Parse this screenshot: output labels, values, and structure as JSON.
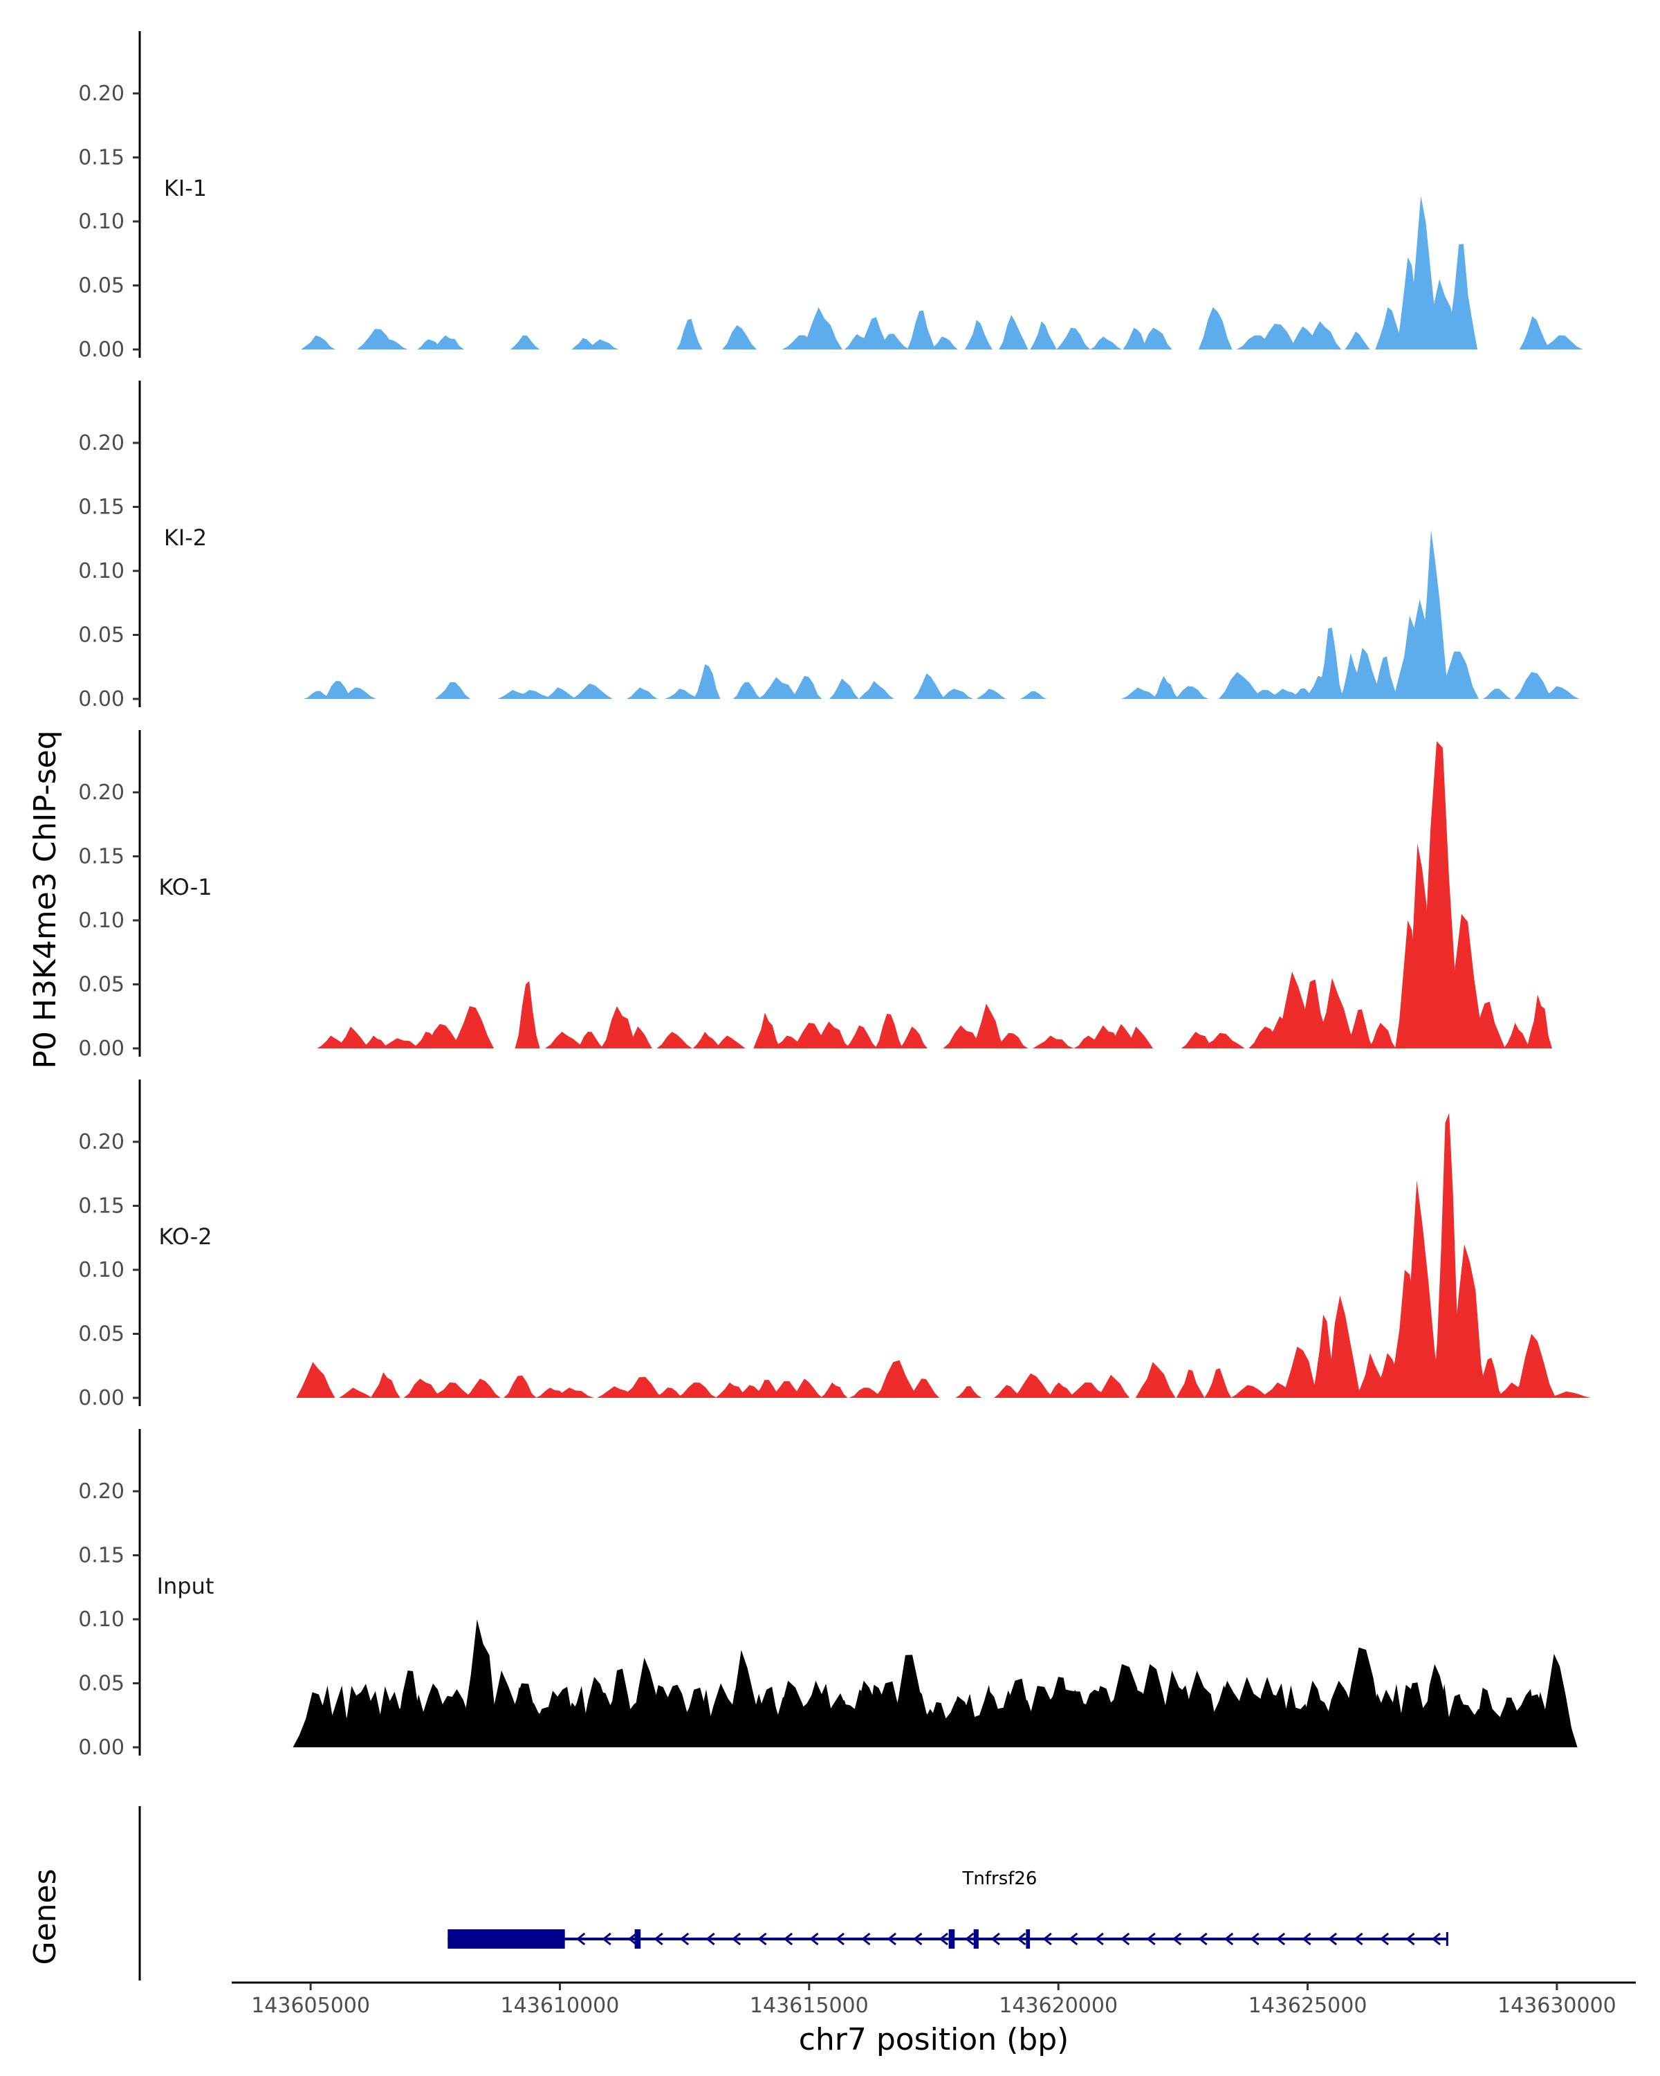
{
  "chart_data": {
    "type": "area",
    "ylabel": "P0 H3K4me3 ChIP-seq",
    "genes_label": "Genes",
    "xlabel": "chr7 position (bp)",
    "xlim": [
      143603500,
      143631500
    ],
    "ylim": [
      0,
      0.25
    ],
    "y_ticks": [
      0.0,
      0.05,
      0.1,
      0.15,
      0.2
    ],
    "y_tick_labels": [
      "0.00",
      "0.05",
      "0.10",
      "0.15",
      "0.20"
    ],
    "x_ticks": [
      143605000,
      143610000,
      143615000,
      143620000,
      143625000,
      143630000
    ],
    "x_tick_labels": [
      "143605000",
      "143610000",
      "143615000",
      "143620000",
      "143625000",
      "143630000"
    ],
    "tracks": [
      {
        "name": "KI-1",
        "color": "#5DADEC",
        "peaks": [
          [
            143605150,
            0.011
          ],
          [
            143606350,
            0.016
          ],
          [
            143606600,
            0.008
          ],
          [
            143607400,
            0.008
          ],
          [
            143607750,
            0.011
          ],
          [
            143609300,
            0.011
          ],
          [
            143610500,
            0.009
          ],
          [
            143610850,
            0.008
          ],
          [
            143612600,
            0.023
          ],
          [
            143613600,
            0.019
          ],
          [
            143614850,
            0.011
          ],
          [
            143615250,
            0.033
          ],
          [
            143616000,
            0.012
          ],
          [
            143616300,
            0.024
          ],
          [
            143616650,
            0.012
          ],
          [
            143617250,
            0.03
          ],
          [
            143617700,
            0.01
          ],
          [
            143618400,
            0.023
          ],
          [
            143619100,
            0.027
          ],
          [
            143619700,
            0.022
          ],
          [
            143620300,
            0.017
          ],
          [
            143620950,
            0.01
          ],
          [
            143621550,
            0.017
          ],
          [
            143621950,
            0.017
          ],
          [
            143623150,
            0.033
          ],
          [
            143624000,
            0.011
          ],
          [
            143624400,
            0.02
          ],
          [
            143624950,
            0.018
          ],
          [
            143625300,
            0.022
          ],
          [
            143626000,
            0.014
          ],
          [
            143626650,
            0.033
          ],
          [
            143627050,
            0.072
          ],
          [
            143627320,
            0.12
          ],
          [
            143627700,
            0.055
          ],
          [
            143628080,
            0.082
          ],
          [
            143629550,
            0.026
          ],
          [
            143630100,
            0.011
          ]
        ]
      },
      {
        "name": "KI-2",
        "color": "#5DADEC",
        "peaks": [
          [
            143605150,
            0.006
          ],
          [
            143605550,
            0.014
          ],
          [
            143605950,
            0.009
          ],
          [
            143607850,
            0.013
          ],
          [
            143609100,
            0.007
          ],
          [
            143609450,
            0.007
          ],
          [
            143610000,
            0.009
          ],
          [
            143610650,
            0.012
          ],
          [
            143611650,
            0.009
          ],
          [
            143612450,
            0.008
          ],
          [
            143612950,
            0.027
          ],
          [
            143613750,
            0.013
          ],
          [
            143614400,
            0.017
          ],
          [
            143614950,
            0.018
          ],
          [
            143615700,
            0.016
          ],
          [
            143616350,
            0.014
          ],
          [
            143617400,
            0.02
          ],
          [
            143617950,
            0.008
          ],
          [
            143618650,
            0.008
          ],
          [
            143619500,
            0.006
          ],
          [
            143621650,
            0.009
          ],
          [
            143622150,
            0.018
          ],
          [
            143622650,
            0.01
          ],
          [
            143623650,
            0.021
          ],
          [
            143624150,
            0.007
          ],
          [
            143624550,
            0.008
          ],
          [
            143624900,
            0.008
          ],
          [
            143625250,
            0.018
          ],
          [
            143625450,
            0.055
          ],
          [
            143625900,
            0.036
          ],
          [
            143626150,
            0.04
          ],
          [
            143626550,
            0.032
          ],
          [
            143627100,
            0.065
          ],
          [
            143627300,
            0.078
          ],
          [
            143627520,
            0.132
          ],
          [
            143628000,
            0.037
          ],
          [
            143628800,
            0.008
          ],
          [
            143629550,
            0.021
          ],
          [
            143630050,
            0.01
          ]
        ]
      },
      {
        "name": "KO-1",
        "color": "#EE2C2C",
        "peaks": [
          [
            143605450,
            0.01
          ],
          [
            143605850,
            0.017
          ],
          [
            143606300,
            0.01
          ],
          [
            143606800,
            0.008
          ],
          [
            143607350,
            0.013
          ],
          [
            143607650,
            0.019
          ],
          [
            143608250,
            0.033
          ],
          [
            143609350,
            0.05
          ],
          [
            143610100,
            0.013
          ],
          [
            143610600,
            0.013
          ],
          [
            143611200,
            0.033
          ],
          [
            143611600,
            0.017
          ],
          [
            143612300,
            0.013
          ],
          [
            143612950,
            0.013
          ],
          [
            143613400,
            0.01
          ],
          [
            143614150,
            0.028
          ],
          [
            143614600,
            0.01
          ],
          [
            143615050,
            0.02
          ],
          [
            143615450,
            0.021
          ],
          [
            143616050,
            0.018
          ],
          [
            143616600,
            0.027
          ],
          [
            143617100,
            0.017
          ],
          [
            143618100,
            0.018
          ],
          [
            143618600,
            0.035
          ],
          [
            143619050,
            0.012
          ],
          [
            143619900,
            0.01
          ],
          [
            143620650,
            0.01
          ],
          [
            143620950,
            0.018
          ],
          [
            143621300,
            0.019
          ],
          [
            143621600,
            0.017
          ],
          [
            143622800,
            0.013
          ],
          [
            143623300,
            0.012
          ],
          [
            143624200,
            0.017
          ],
          [
            143624500,
            0.025
          ],
          [
            143624750,
            0.06
          ],
          [
            143625100,
            0.052
          ],
          [
            143625550,
            0.055
          ],
          [
            143626050,
            0.03
          ],
          [
            143626500,
            0.02
          ],
          [
            143627050,
            0.1
          ],
          [
            143627250,
            0.16
          ],
          [
            143627650,
            0.24
          ],
          [
            143628150,
            0.105
          ],
          [
            143628600,
            0.035
          ],
          [
            143629200,
            0.02
          ],
          [
            143629650,
            0.042
          ]
        ]
      },
      {
        "name": "KO-2",
        "color": "#EE2C2C",
        "peaks": [
          [
            143605100,
            0.028
          ],
          [
            143605900,
            0.008
          ],
          [
            143606500,
            0.02
          ],
          [
            143607250,
            0.015
          ],
          [
            143607850,
            0.012
          ],
          [
            143608450,
            0.015
          ],
          [
            143609200,
            0.017
          ],
          [
            143609850,
            0.008
          ],
          [
            143610250,
            0.008
          ],
          [
            143611150,
            0.009
          ],
          [
            143611650,
            0.016
          ],
          [
            143612200,
            0.008
          ],
          [
            143612750,
            0.012
          ],
          [
            143613450,
            0.012
          ],
          [
            143613850,
            0.01
          ],
          [
            143614150,
            0.014
          ],
          [
            143614550,
            0.013
          ],
          [
            143614950,
            0.015
          ],
          [
            143615500,
            0.012
          ],
          [
            143616150,
            0.008
          ],
          [
            143616750,
            0.028
          ],
          [
            143617300,
            0.015
          ],
          [
            143618200,
            0.009
          ],
          [
            143619000,
            0.01
          ],
          [
            143619500,
            0.019
          ],
          [
            143620050,
            0.012
          ],
          [
            143620600,
            0.012
          ],
          [
            143621100,
            0.018
          ],
          [
            143621950,
            0.028
          ],
          [
            143622650,
            0.022
          ],
          [
            143623200,
            0.022
          ],
          [
            143623850,
            0.01
          ],
          [
            143624450,
            0.012
          ],
          [
            143624850,
            0.04
          ],
          [
            143625350,
            0.065
          ],
          [
            143625700,
            0.08
          ],
          [
            143626300,
            0.035
          ],
          [
            143626650,
            0.035
          ],
          [
            143627000,
            0.1
          ],
          [
            143627250,
            0.17
          ],
          [
            143627800,
            0.215
          ],
          [
            143628200,
            0.12
          ],
          [
            143628650,
            0.03
          ],
          [
            143629150,
            0.012
          ],
          [
            143629550,
            0.05
          ],
          [
            143630250,
            0.005
          ]
        ]
      },
      {
        "name": "Input",
        "color": "#000000",
        "peaks": [
          [
            143605100,
            0.043
          ],
          [
            143605800,
            0.025
          ],
          [
            143606500,
            0.025
          ],
          [
            143607000,
            0.06
          ],
          [
            143607700,
            0.03
          ],
          [
            143608000,
            0.045
          ],
          [
            143608400,
            0.1
          ],
          [
            143608900,
            0.06
          ],
          [
            143609300,
            0.05
          ],
          [
            143609700,
            0.03
          ],
          [
            143610300,
            0.035
          ],
          [
            143610750,
            0.055
          ],
          [
            143611200,
            0.06
          ],
          [
            143611750,
            0.07
          ],
          [
            143612100,
            0.04
          ],
          [
            143612750,
            0.045
          ],
          [
            143613300,
            0.05
          ],
          [
            143613700,
            0.076
          ],
          [
            143614200,
            0.045
          ],
          [
            143614650,
            0.052
          ],
          [
            143615200,
            0.052
          ],
          [
            143615650,
            0.035
          ],
          [
            143616150,
            0.052
          ],
          [
            143616600,
            0.05
          ],
          [
            143617000,
            0.072
          ],
          [
            143617500,
            0.03
          ],
          [
            143618050,
            0.04
          ],
          [
            143618650,
            0.045
          ],
          [
            143619200,
            0.052
          ],
          [
            143619650,
            0.048
          ],
          [
            143620050,
            0.055
          ],
          [
            143620400,
            0.045
          ],
          [
            143620900,
            0.048
          ],
          [
            143621350,
            0.065
          ],
          [
            143621900,
            0.065
          ],
          [
            143622350,
            0.06
          ],
          [
            143622850,
            0.06
          ],
          [
            143623450,
            0.052
          ],
          [
            143623850,
            0.055
          ],
          [
            143624250,
            0.055
          ],
          [
            143624700,
            0.042
          ],
          [
            143625150,
            0.052
          ],
          [
            143625700,
            0.052
          ],
          [
            143626100,
            0.078
          ],
          [
            143626650,
            0.045
          ],
          [
            143627150,
            0.05
          ],
          [
            143627600,
            0.065
          ],
          [
            143628000,
            0.04
          ],
          [
            143628500,
            0.03
          ],
          [
            143629050,
            0.035
          ],
          [
            143629550,
            0.04
          ],
          [
            143630000,
            0.073
          ]
        ]
      }
    ],
    "gene": {
      "name": "Tnfrsf26",
      "color": "#00008B",
      "strand": "-",
      "start": 143607750,
      "end": 143627800,
      "thick_exon": [
        143607750,
        143610100
      ],
      "exons": [
        [
          143611500,
          143611620
        ],
        [
          143617800,
          143617920
        ],
        [
          143618300,
          143618400
        ],
        [
          143619350,
          143619430
        ]
      ]
    }
  }
}
